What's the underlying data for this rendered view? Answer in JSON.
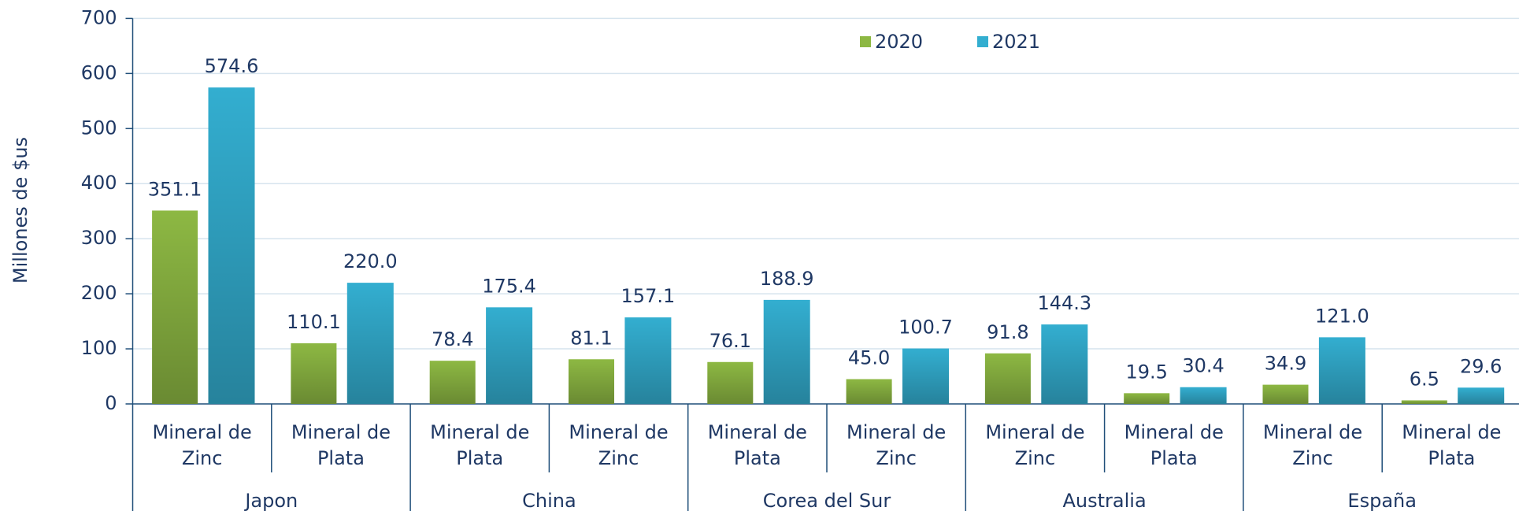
{
  "chart_data": {
    "type": "bar",
    "y_axis_label": "Millones de $us",
    "groups": [
      {
        "name": "Japon",
        "categories": [
          "Mineral de Zinc",
          "Mineral de Plata"
        ]
      },
      {
        "name": "China",
        "categories": [
          "Mineral de Plata",
          "Mineral de Zinc"
        ]
      },
      {
        "name": "Corea del Sur",
        "categories": [
          "Mineral de Plata",
          "Mineral de Zinc"
        ]
      },
      {
        "name": "Australia",
        "categories": [
          "Mineral de Zinc",
          "Mineral de Plata"
        ]
      },
      {
        "name": "España",
        "categories": [
          "Mineral de Zinc",
          "Mineral de Plata"
        ]
      }
    ],
    "series": [
      {
        "name": "2020",
        "color": "#8db843",
        "values": [
          351.1,
          110.1,
          78.4,
          81.1,
          76.1,
          45.0,
          91.8,
          19.5,
          34.9,
          6.5
        ],
        "value_labels": [
          "351.1",
          "110.1",
          "78.4",
          "81.1",
          "76.1",
          "45.0",
          "91.8",
          "19.5",
          "34.9",
          "6.5"
        ]
      },
      {
        "name": "2021",
        "color": "#33aed0",
        "values": [
          574.6,
          220.0,
          175.4,
          157.1,
          188.9,
          100.7,
          144.3,
          30.4,
          121.0,
          29.6
        ],
        "value_labels": [
          "574.6",
          "220.0",
          "175.4",
          "157.1",
          "188.9",
          "100.7",
          "144.3",
          "30.4",
          "121.0",
          "29.6"
        ]
      }
    ],
    "ylim": [
      0,
      700
    ],
    "yticks": [
      0,
      100,
      200,
      300,
      400,
      500,
      600,
      700
    ],
    "grid": true
  }
}
